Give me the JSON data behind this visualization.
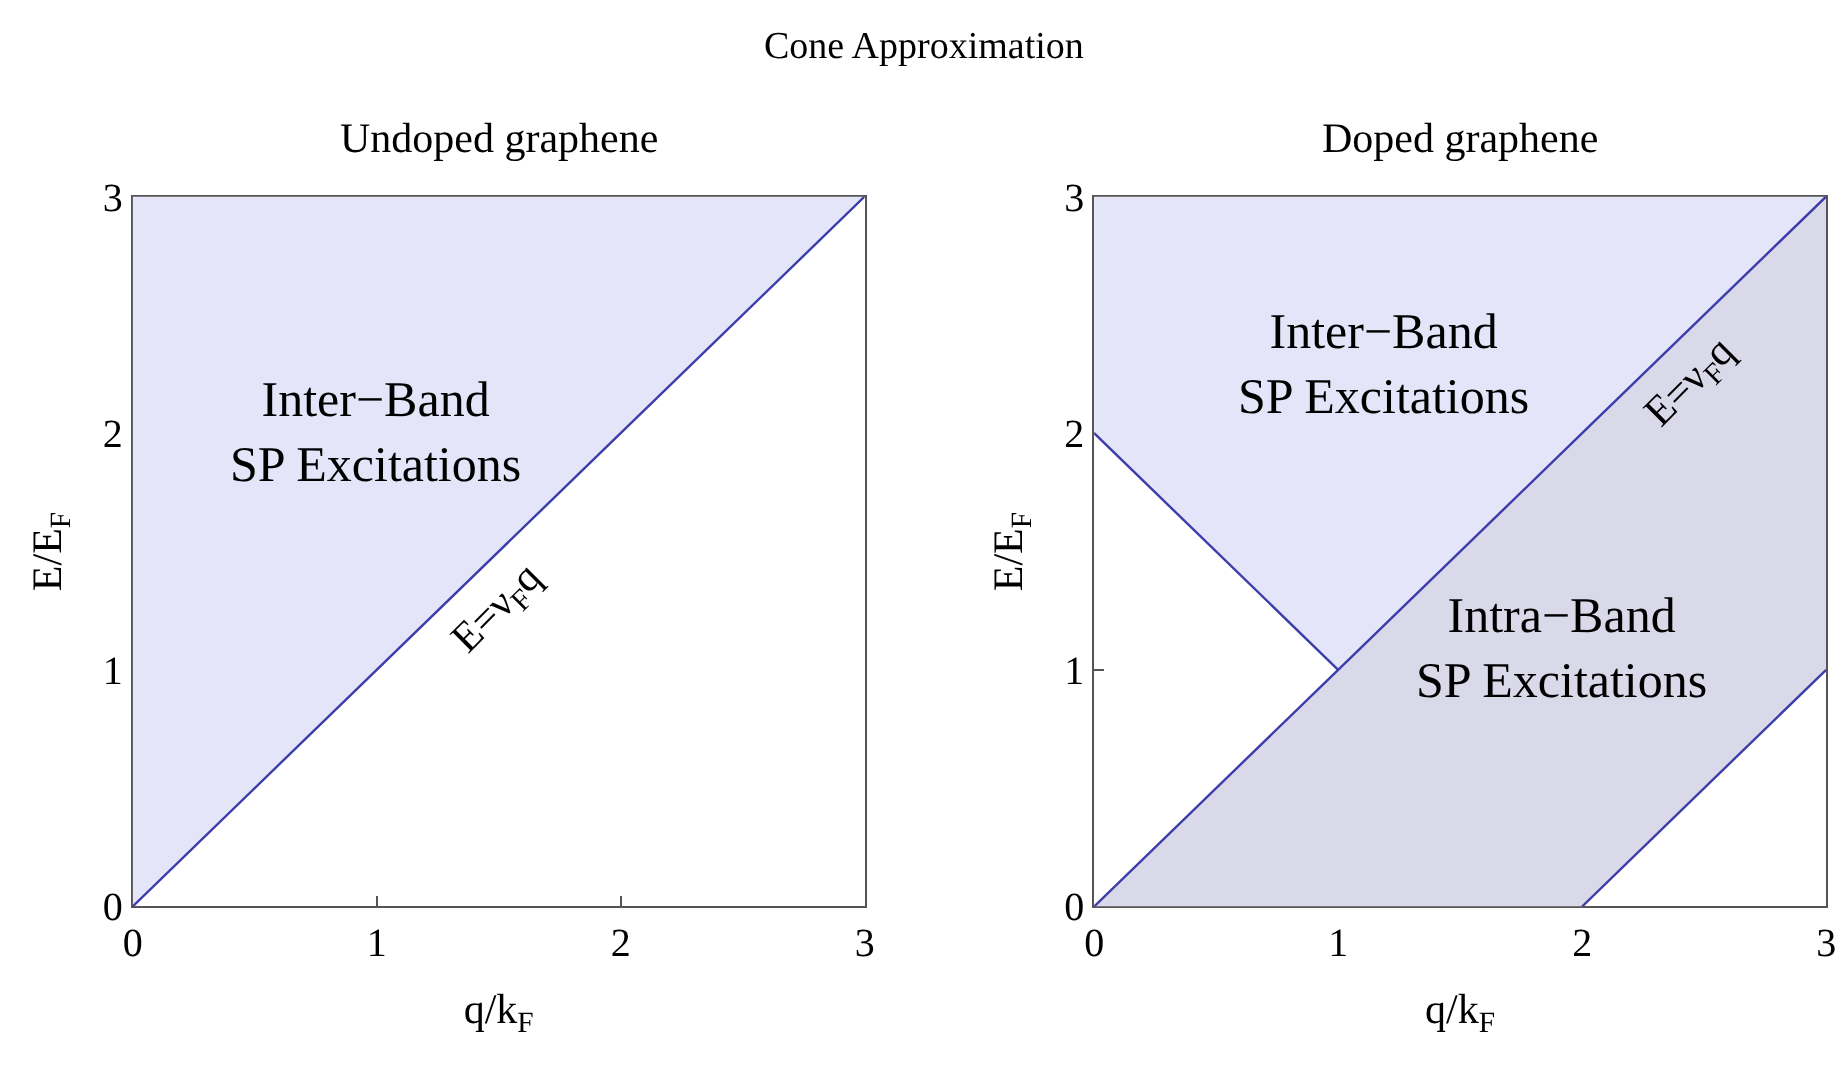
{
  "chart_data": [
    {
      "type": "line",
      "title": "Undoped graphene",
      "xlabel": "q/k$_{F}$",
      "ylabel": "E/E$_{F}$",
      "xlim": [
        0,
        3
      ],
      "ylim": [
        0,
        3
      ],
      "xticks": [
        0,
        1,
        2,
        3
      ],
      "yticks": [
        0,
        1,
        2,
        3
      ],
      "series": [
        {
          "color": "#e5e5fa",
          "x": [
            0,
            1,
            2,
            3
          ],
          "values": [
            null,
            null,
            null,
            null
          ],
          "lower": [
            0,
            1,
            2,
            3
          ],
          "upper": [
            3,
            3,
            3,
            3
          ]
        },
        {
          "color": "#3c3caa",
          "x": [
            0,
            1,
            2,
            3
          ],
          "values": [
            0,
            1,
            2,
            3
          ]
        }
      ],
      "annotations": [
        "Inter−Band\nSP Excitations",
        "Cone Approximation",
        {
          "text": "E=ν$_{F}$q",
          "x": 1.38,
          "y": 1.38
        }
      ]
    },
    {
      "type": "line",
      "title": "Doped graphene",
      "xlabel": "q/k$_{F}$",
      "ylabel": "E/E$_{F}$",
      "xlim": [
        0,
        3
      ],
      "ylim": [
        0,
        3
      ],
      "xticks": [
        0,
        1,
        2,
        3
      ],
      "yticks": [
        0,
        1,
        2,
        3
      ],
      "series": [
        {
          "color": "#e5e5fa",
          "x": [
            0,
            1,
            2,
            3
          ],
          "values": [
            null,
            null,
            null,
            null
          ],
          "lower": [
            2,
            1,
            2,
            3
          ],
          "upper": [
            3,
            3,
            3,
            3
          ]
        },
        {
          "color": "#d9d9e9",
          "x": [
            0,
            1,
            2,
            3
          ],
          "values": [
            null,
            null,
            null,
            null
          ],
          "lower": [
            0,
            0,
            0,
            1
          ],
          "upper": [
            0,
            1,
            2,
            3
          ]
        },
        {
          "color": "#3c3caa",
          "x": [
            0,
            1,
            2,
            3
          ],
          "values": [
            0,
            1,
            2,
            3
          ]
        },
        {
          "color": "#3c3caa",
          "x": [
            0,
            1
          ],
          "values": [
            2,
            1
          ]
        },
        {
          "color": "#3c3caa",
          "x": [
            2,
            3
          ],
          "values": [
            0,
            1
          ]
        }
      ],
      "annotations": [
        "Inter−Band\nSP Excitations",
        "Intra−Band\nSP Excitations",
        {
          "text": "E=ν$_{F}$q",
          "x": 2.33,
          "y": 2.33
        }
      ]
    }
  ]
}
